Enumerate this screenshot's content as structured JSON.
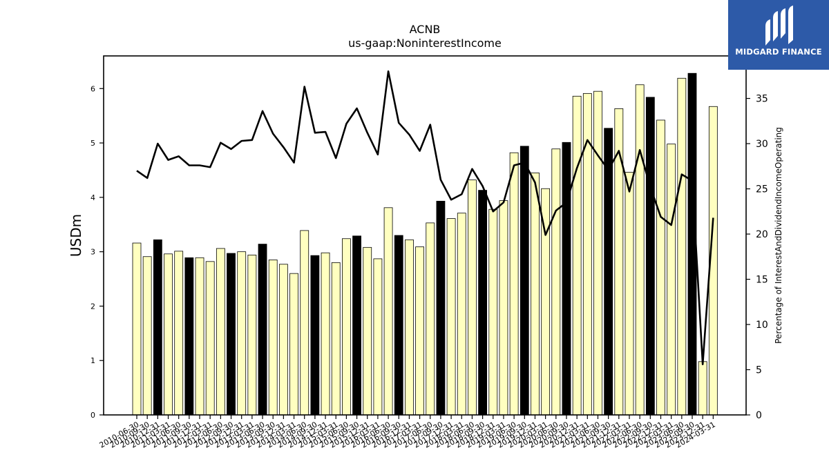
{
  "brand": {
    "name": "MIDGARD FINANCE",
    "bg_color": "#2d5aa8"
  },
  "chart_data": {
    "type": "bar",
    "title": "ACNB",
    "subtitle": "us-gaap:NoninterestIncome",
    "ylabel": "USDm",
    "y2label": "Percentage of InterestAndDividendIncomeOperating",
    "ylim": [
      0,
      6.6
    ],
    "y2lim": [
      0,
      39.7
    ],
    "yticks": [
      0,
      1,
      2,
      3,
      4,
      5,
      6
    ],
    "y2ticks": [
      0,
      5,
      10,
      15,
      20,
      25,
      30,
      35
    ],
    "colors": {
      "bar": "#ffffc0",
      "highlight": "#000000",
      "line": "#000000"
    },
    "categories": [
      "2010-06-30",
      "2010-09-30",
      "2010-12-31",
      "2011-03-31",
      "2011-06-30",
      "2011-09-30",
      "2011-12-31",
      "2012-03-31",
      "2012-06-30",
      "2012-09-30",
      "2012-12-31",
      "2013-03-31",
      "2013-06-30",
      "2013-09-30",
      "2013-12-31",
      "2014-03-31",
      "2014-06-30",
      "2014-09-30",
      "2014-12-31",
      "2015-03-31",
      "2015-06-30",
      "2015-09-30",
      "2015-12-31",
      "2016-03-31",
      "2016-06-30",
      "2016-09-30",
      "2016-12-31",
      "2017-03-31",
      "2017-06-30",
      "2017-09-30",
      "2017-12-31",
      "2018-03-31",
      "2018-06-30",
      "2018-09-30",
      "2018-12-31",
      "2019-03-31",
      "2019-06-30",
      "2019-09-30",
      "2019-12-31",
      "2020-03-31",
      "2020-06-30",
      "2020-09-30",
      "2020-12-31",
      "2021-03-31",
      "2021-06-30",
      "2021-09-30",
      "2021-12-31",
      "2022-03-31",
      "2022-06-30",
      "2022-09-30",
      "2022-12-31",
      "2023-03-31",
      "2023-06-30",
      "2023-09-30",
      "2023-12-31",
      "2024-03-31"
    ],
    "series": [
      {
        "type": "bar",
        "values": [
          3.16,
          2.91,
          3.22,
          2.96,
          3.01,
          2.89,
          2.89,
          2.82,
          3.06,
          2.97,
          3.0,
          2.94,
          3.14,
          2.85,
          2.77,
          2.6,
          3.39,
          2.93,
          2.98,
          2.8,
          3.24,
          3.29,
          3.08,
          2.87,
          3.81,
          3.3,
          3.22,
          3.09,
          3.53,
          3.93,
          3.61,
          3.71,
          4.32,
          4.13,
          3.78,
          3.94,
          4.82,
          4.94,
          4.45,
          4.16,
          4.89,
          5.01,
          5.86,
          5.91,
          5.95,
          5.27,
          5.63,
          4.46,
          6.07,
          5.84,
          5.42,
          4.98,
          6.19,
          6.28,
          0.98,
          5.67
        ],
        "highlight": [
          false,
          false,
          true,
          false,
          false,
          true,
          false,
          false,
          false,
          true,
          false,
          false,
          true,
          false,
          false,
          false,
          false,
          true,
          false,
          false,
          false,
          true,
          false,
          false,
          false,
          true,
          false,
          false,
          false,
          true,
          false,
          false,
          false,
          true,
          false,
          false,
          false,
          true,
          false,
          false,
          false,
          true,
          false,
          false,
          false,
          true,
          false,
          false,
          false,
          true,
          false,
          false,
          false,
          true,
          false,
          false
        ]
      },
      {
        "type": "line",
        "axis": "right",
        "values": [
          27.0,
          26.2,
          30.0,
          28.2,
          28.6,
          27.6,
          27.6,
          27.4,
          30.1,
          29.4,
          30.3,
          30.4,
          33.6,
          31.1,
          29.6,
          27.9,
          36.3,
          31.2,
          31.3,
          28.4,
          32.2,
          33.9,
          31.2,
          28.8,
          38.0,
          32.3,
          31.0,
          29.2,
          32.1,
          26.0,
          23.8,
          24.4,
          27.2,
          25.3,
          22.5,
          23.5,
          27.6,
          27.9,
          25.7,
          19.9,
          22.6,
          23.5,
          27.3,
          30.4,
          28.7,
          27.1,
          29.2,
          24.7,
          29.3,
          25.2,
          21.9,
          21.0,
          26.6,
          25.9,
          5.6,
          21.8
        ]
      }
    ],
    "xtick_labels": [
      "2010-06-30",
      "2010-09-30",
      "2010-12-31",
      "2011-03-31",
      "2011-06-30",
      "2011-09-30",
      "2011-12-31",
      "2012-03-31",
      "2012-06-30",
      "2012-09-30",
      "2012-12-31",
      "2013-03-31",
      "2013-06-30",
      "2013-09-30",
      "2013-12-31",
      "2014-03-31",
      "2014-06-30",
      "2014-09-30",
      "2014-12-31",
      "2015-03-31",
      "2015-06-30",
      "2015-09-30",
      "2015-12-31",
      "2016-03-31",
      "2016-06-30",
      "2016-09-30",
      "2016-12-31",
      "2017-03-31",
      "2017-06-30",
      "2017-09-30",
      "2017-12-31",
      "2018-03-31",
      "2018-06-30",
      "2018-09-30",
      "2018-12-31",
      "2019-03-31",
      "2019-06-30",
      "2019-09-30",
      "2019-12-31",
      "2020-03-31",
      "2020-06-30",
      "2020-09-30",
      "2020-12-31",
      "2021-03-31",
      "2021-06-30",
      "2021-09-30",
      "2021-12-31",
      "2022-03-31",
      "2022-06-30",
      "2022-09-30",
      "2022-12-31",
      "2023-03-31",
      "2023-06-30",
      "2023-09-30",
      "2023-12-31",
      "2024-03-31"
    ]
  }
}
